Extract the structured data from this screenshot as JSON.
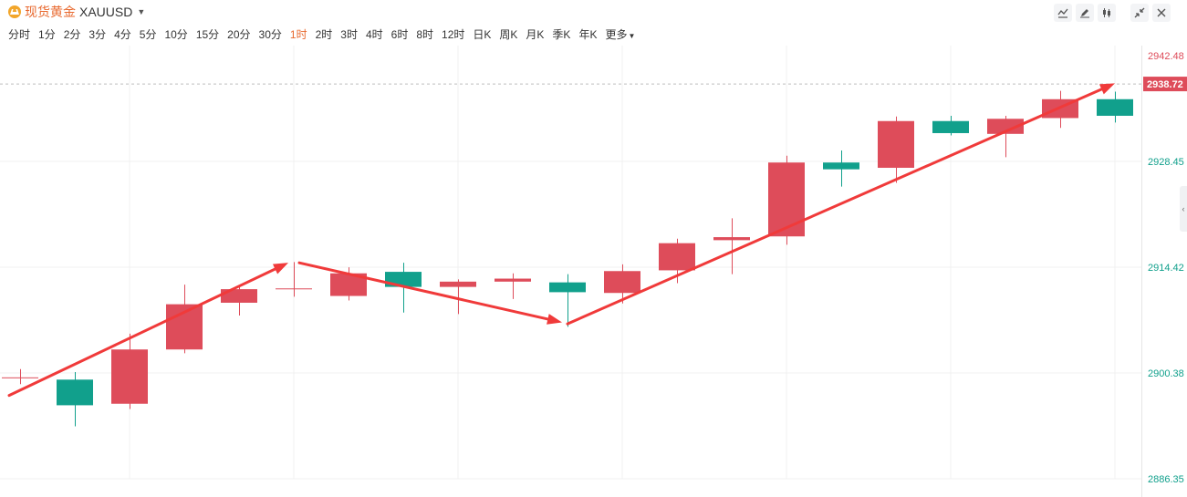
{
  "header": {
    "symbol_name": "现货黄金",
    "symbol_code": "XAUUSD",
    "logo_icon": "gold-ingot-icon",
    "tools": [
      "line-style-icon",
      "draw-pen-icon",
      "candle-type-icon",
      "shrink-icon",
      "close-icon"
    ]
  },
  "periods": {
    "items": [
      "分时",
      "1分",
      "2分",
      "3分",
      "4分",
      "5分",
      "10分",
      "15分",
      "20分",
      "30分",
      "1时",
      "2时",
      "3时",
      "4时",
      "6时",
      "8时",
      "12时",
      "日K",
      "周K",
      "月K",
      "季K",
      "年K",
      "更多"
    ],
    "active": "1时"
  },
  "colors": {
    "up": "#de4c5a",
    "down": "#11a08c",
    "arrow": "#f03a3a",
    "grid": "#f0f0f0",
    "accent": "#e8692f"
  },
  "chart_data": {
    "type": "candlestick",
    "ylim": [
      2886.35,
      2942.48
    ],
    "yticks": [
      2942.48,
      2928.45,
      2914.42,
      2900.38,
      2886.35
    ],
    "current_price": 2938.72,
    "candles": [
      {
        "o": 2899.8,
        "h": 2900.9,
        "l": 2898.9,
        "c": 2899.8
      },
      {
        "o": 2899.5,
        "h": 2900.5,
        "l": 2893.3,
        "c": 2896.1
      },
      {
        "o": 2896.3,
        "h": 2905.6,
        "l": 2895.6,
        "c": 2903.5
      },
      {
        "o": 2903.5,
        "h": 2912.1,
        "l": 2903.0,
        "c": 2909.5
      },
      {
        "o": 2909.7,
        "h": 2911.8,
        "l": 2908.0,
        "c": 2911.5
      },
      {
        "o": 2911.6,
        "h": 2915.1,
        "l": 2910.5,
        "c": 2911.6
      },
      {
        "o": 2910.6,
        "h": 2914.4,
        "l": 2910.0,
        "c": 2913.6
      },
      {
        "o": 2913.8,
        "h": 2915.0,
        "l": 2908.4,
        "c": 2911.8
      },
      {
        "o": 2911.8,
        "h": 2912.8,
        "l": 2908.2,
        "c": 2912.5
      },
      {
        "o": 2912.5,
        "h": 2913.6,
        "l": 2910.2,
        "c": 2912.9
      },
      {
        "o": 2912.4,
        "h": 2913.5,
        "l": 2906.5,
        "c": 2911.1
      },
      {
        "o": 2911.0,
        "h": 2914.8,
        "l": 2909.6,
        "c": 2913.9
      },
      {
        "o": 2914.0,
        "h": 2918.2,
        "l": 2912.3,
        "c": 2917.6
      },
      {
        "o": 2918.0,
        "h": 2920.9,
        "l": 2913.5,
        "c": 2918.4
      },
      {
        "o": 2918.5,
        "h": 2929.2,
        "l": 2917.4,
        "c": 2928.3
      },
      {
        "o": 2928.3,
        "h": 2929.9,
        "l": 2925.1,
        "c": 2927.4
      },
      {
        "o": 2927.6,
        "h": 2934.4,
        "l": 2925.6,
        "c": 2933.8
      },
      {
        "o": 2933.8,
        "h": 2934.5,
        "l": 2931.9,
        "c": 2932.2
      },
      {
        "o": 2932.1,
        "h": 2934.5,
        "l": 2929.0,
        "c": 2934.1
      },
      {
        "o": 2934.2,
        "h": 2937.8,
        "l": 2932.9,
        "c": 2936.7
      },
      {
        "o": 2936.7,
        "h": 2937.7,
        "l": 2933.6,
        "c": 2934.5
      }
    ],
    "arrows": [
      {
        "from": [
          -0.2,
          2897.4
        ],
        "to": [
          4.9,
          2915.0
        ],
        "stroke": 3
      },
      {
        "from": [
          5.1,
          2915.0
        ],
        "to": [
          9.9,
          2907.1
        ],
        "stroke": 3
      },
      {
        "from": [
          10.0,
          2906.9
        ],
        "to": [
          20.0,
          2938.8
        ],
        "stroke": 3
      }
    ]
  }
}
